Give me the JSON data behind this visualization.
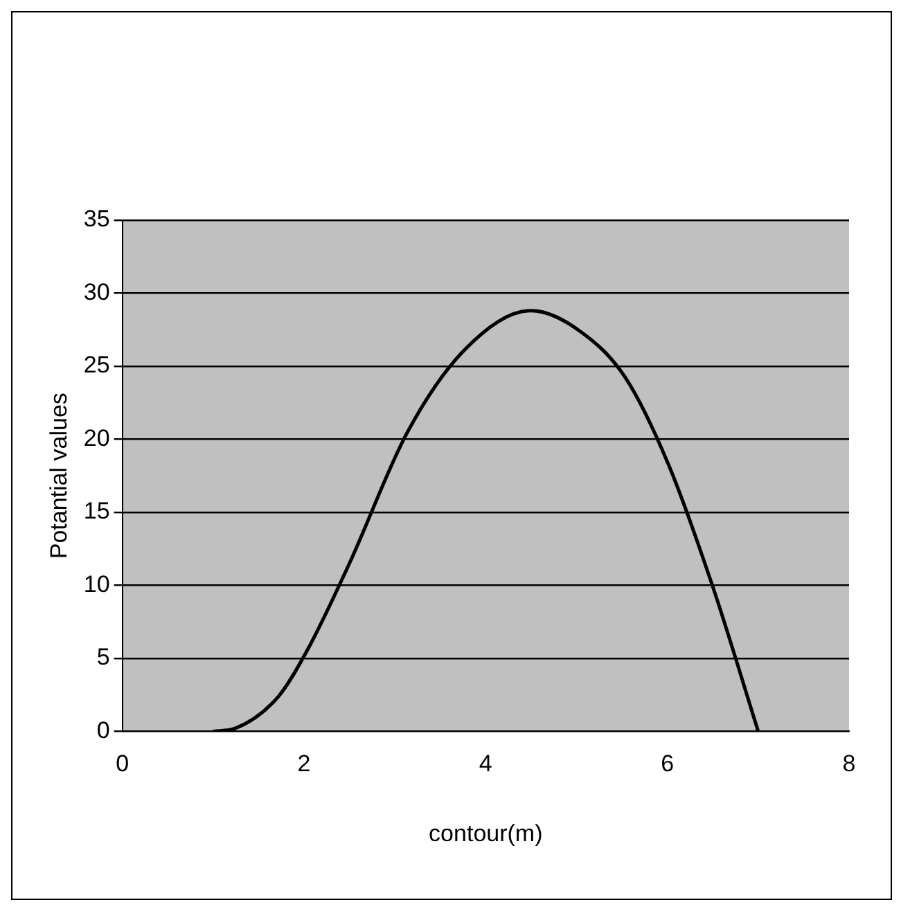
{
  "chart_data": {
    "type": "line",
    "xlabel": "contour(m)",
    "ylabel": "Potantial values",
    "series": [
      {
        "color": "#000000",
        "x": [
          1,
          1.24,
          1.72,
          2.04,
          2.5,
          3.14,
          3.78,
          4.5,
          5.06,
          5.54,
          6.01,
          6.5,
          7
        ],
        "values": [
          0,
          0.2,
          2.4,
          5.6,
          11.5,
          20.5,
          26.2,
          28.8,
          27.3,
          24.2,
          18.3,
          9.9,
          0
        ]
      }
    ],
    "xlim": [
      0,
      8
    ],
    "xticks": [
      0,
      2,
      4,
      6,
      8
    ],
    "ylim": [
      0,
      35
    ],
    "yticks": [
      0,
      5,
      10,
      15,
      20,
      25,
      30,
      35
    ],
    "grid": "y",
    "legend": false,
    "marker": "none",
    "line_style": "solid"
  }
}
